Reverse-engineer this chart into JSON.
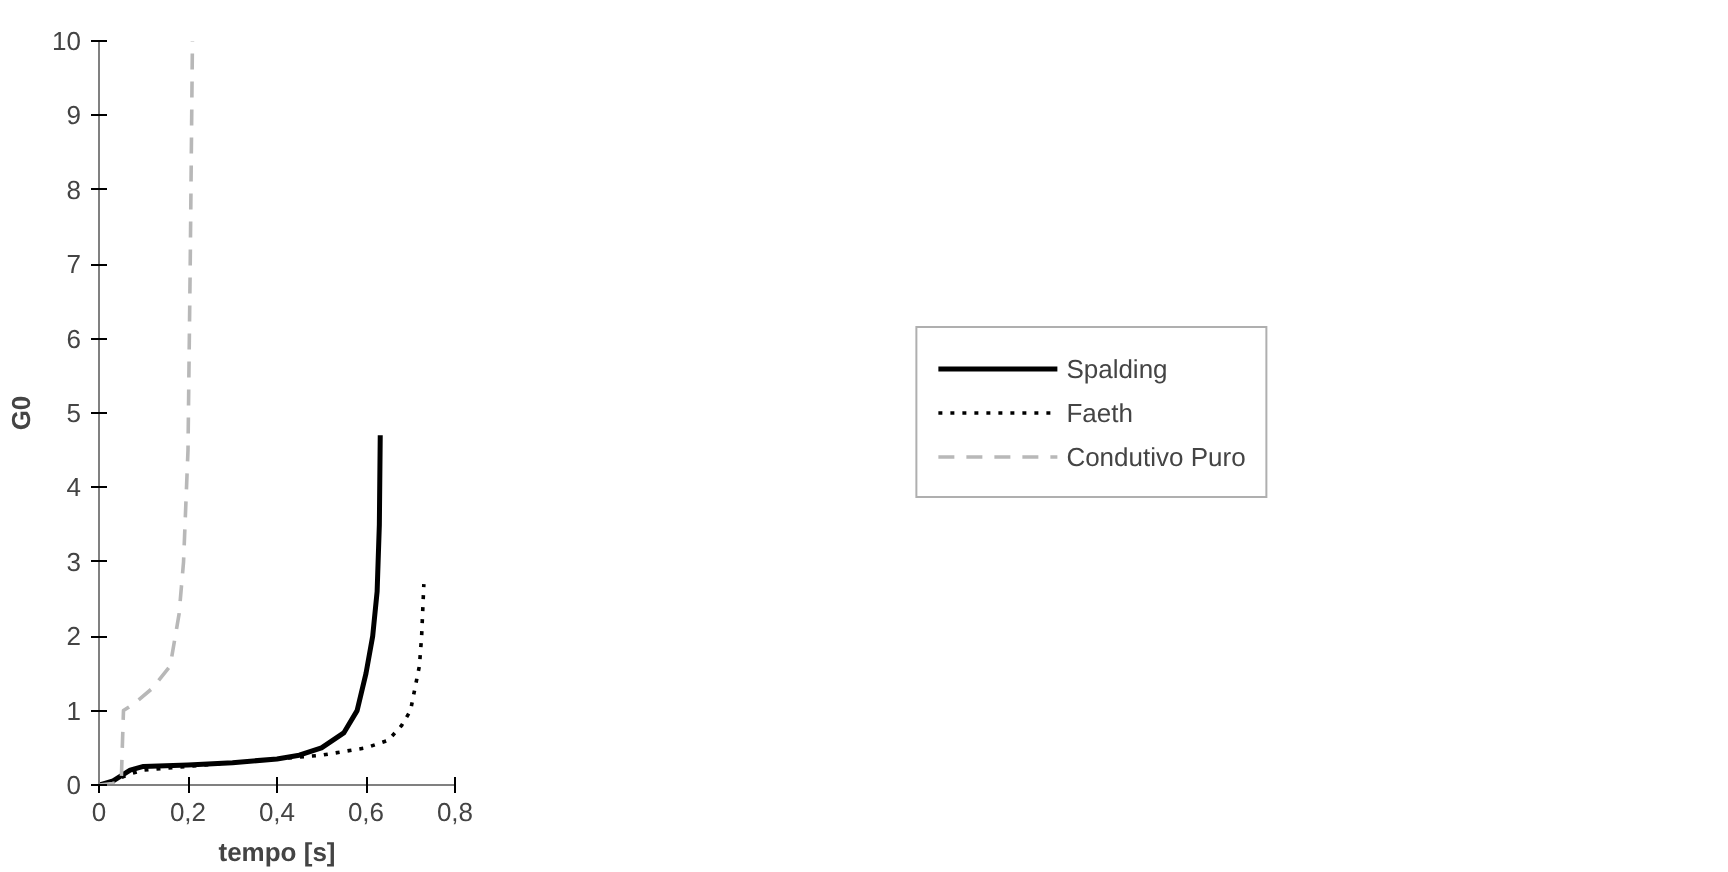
{
  "chart_data": {
    "type": "line",
    "xlabel": "tempo [s]",
    "ylabel": "G0",
    "xlim": [
      0,
      0.8
    ],
    "ylim": [
      0,
      10
    ],
    "xticks": [
      {
        "value": 0,
        "label": "0"
      },
      {
        "value": 0.2,
        "label": "0,2"
      },
      {
        "value": 0.4,
        "label": "0,4"
      },
      {
        "value": 0.6,
        "label": "0,6"
      },
      {
        "value": 0.8,
        "label": "0,8"
      }
    ],
    "yticks": [
      0,
      1,
      2,
      3,
      4,
      5,
      6,
      7,
      8,
      9,
      10
    ],
    "grid": false,
    "legend": "right",
    "marker": "none",
    "series": [
      {
        "name": "Spalding",
        "color": "#000000",
        "line_style": "solid",
        "x": [
          0,
          0.03,
          0.07,
          0.1,
          0.2,
          0.3,
          0.4,
          0.45,
          0.5,
          0.55,
          0.58,
          0.6,
          0.615,
          0.625,
          0.63,
          0.632
        ],
        "values": [
          0,
          0.05,
          0.2,
          0.25,
          0.27,
          0.3,
          0.35,
          0.4,
          0.5,
          0.7,
          1.0,
          1.5,
          2.0,
          2.6,
          3.5,
          4.7
        ]
      },
      {
        "name": "Faeth",
        "color": "#000000",
        "line_style": "dotted",
        "x": [
          0,
          0.03,
          0.07,
          0.1,
          0.2,
          0.3,
          0.4,
          0.5,
          0.6,
          0.65,
          0.68,
          0.7,
          0.71,
          0.72,
          0.725,
          0.73
        ],
        "values": [
          0,
          0.05,
          0.15,
          0.2,
          0.25,
          0.3,
          0.35,
          0.4,
          0.5,
          0.6,
          0.8,
          1.0,
          1.3,
          1.6,
          2.0,
          2.7
        ]
      },
      {
        "name": "Condutivo Puro",
        "color": "#b8b8b8",
        "line_style": "dashed",
        "x": [
          0,
          0.03,
          0.05,
          0.055,
          0.08,
          0.12,
          0.16,
          0.18,
          0.19,
          0.2,
          0.205,
          0.21
        ],
        "values": [
          0,
          0.02,
          0.05,
          1.0,
          1.1,
          1.3,
          1.6,
          2.3,
          3.0,
          4.5,
          7.0,
          10
        ]
      }
    ]
  }
}
